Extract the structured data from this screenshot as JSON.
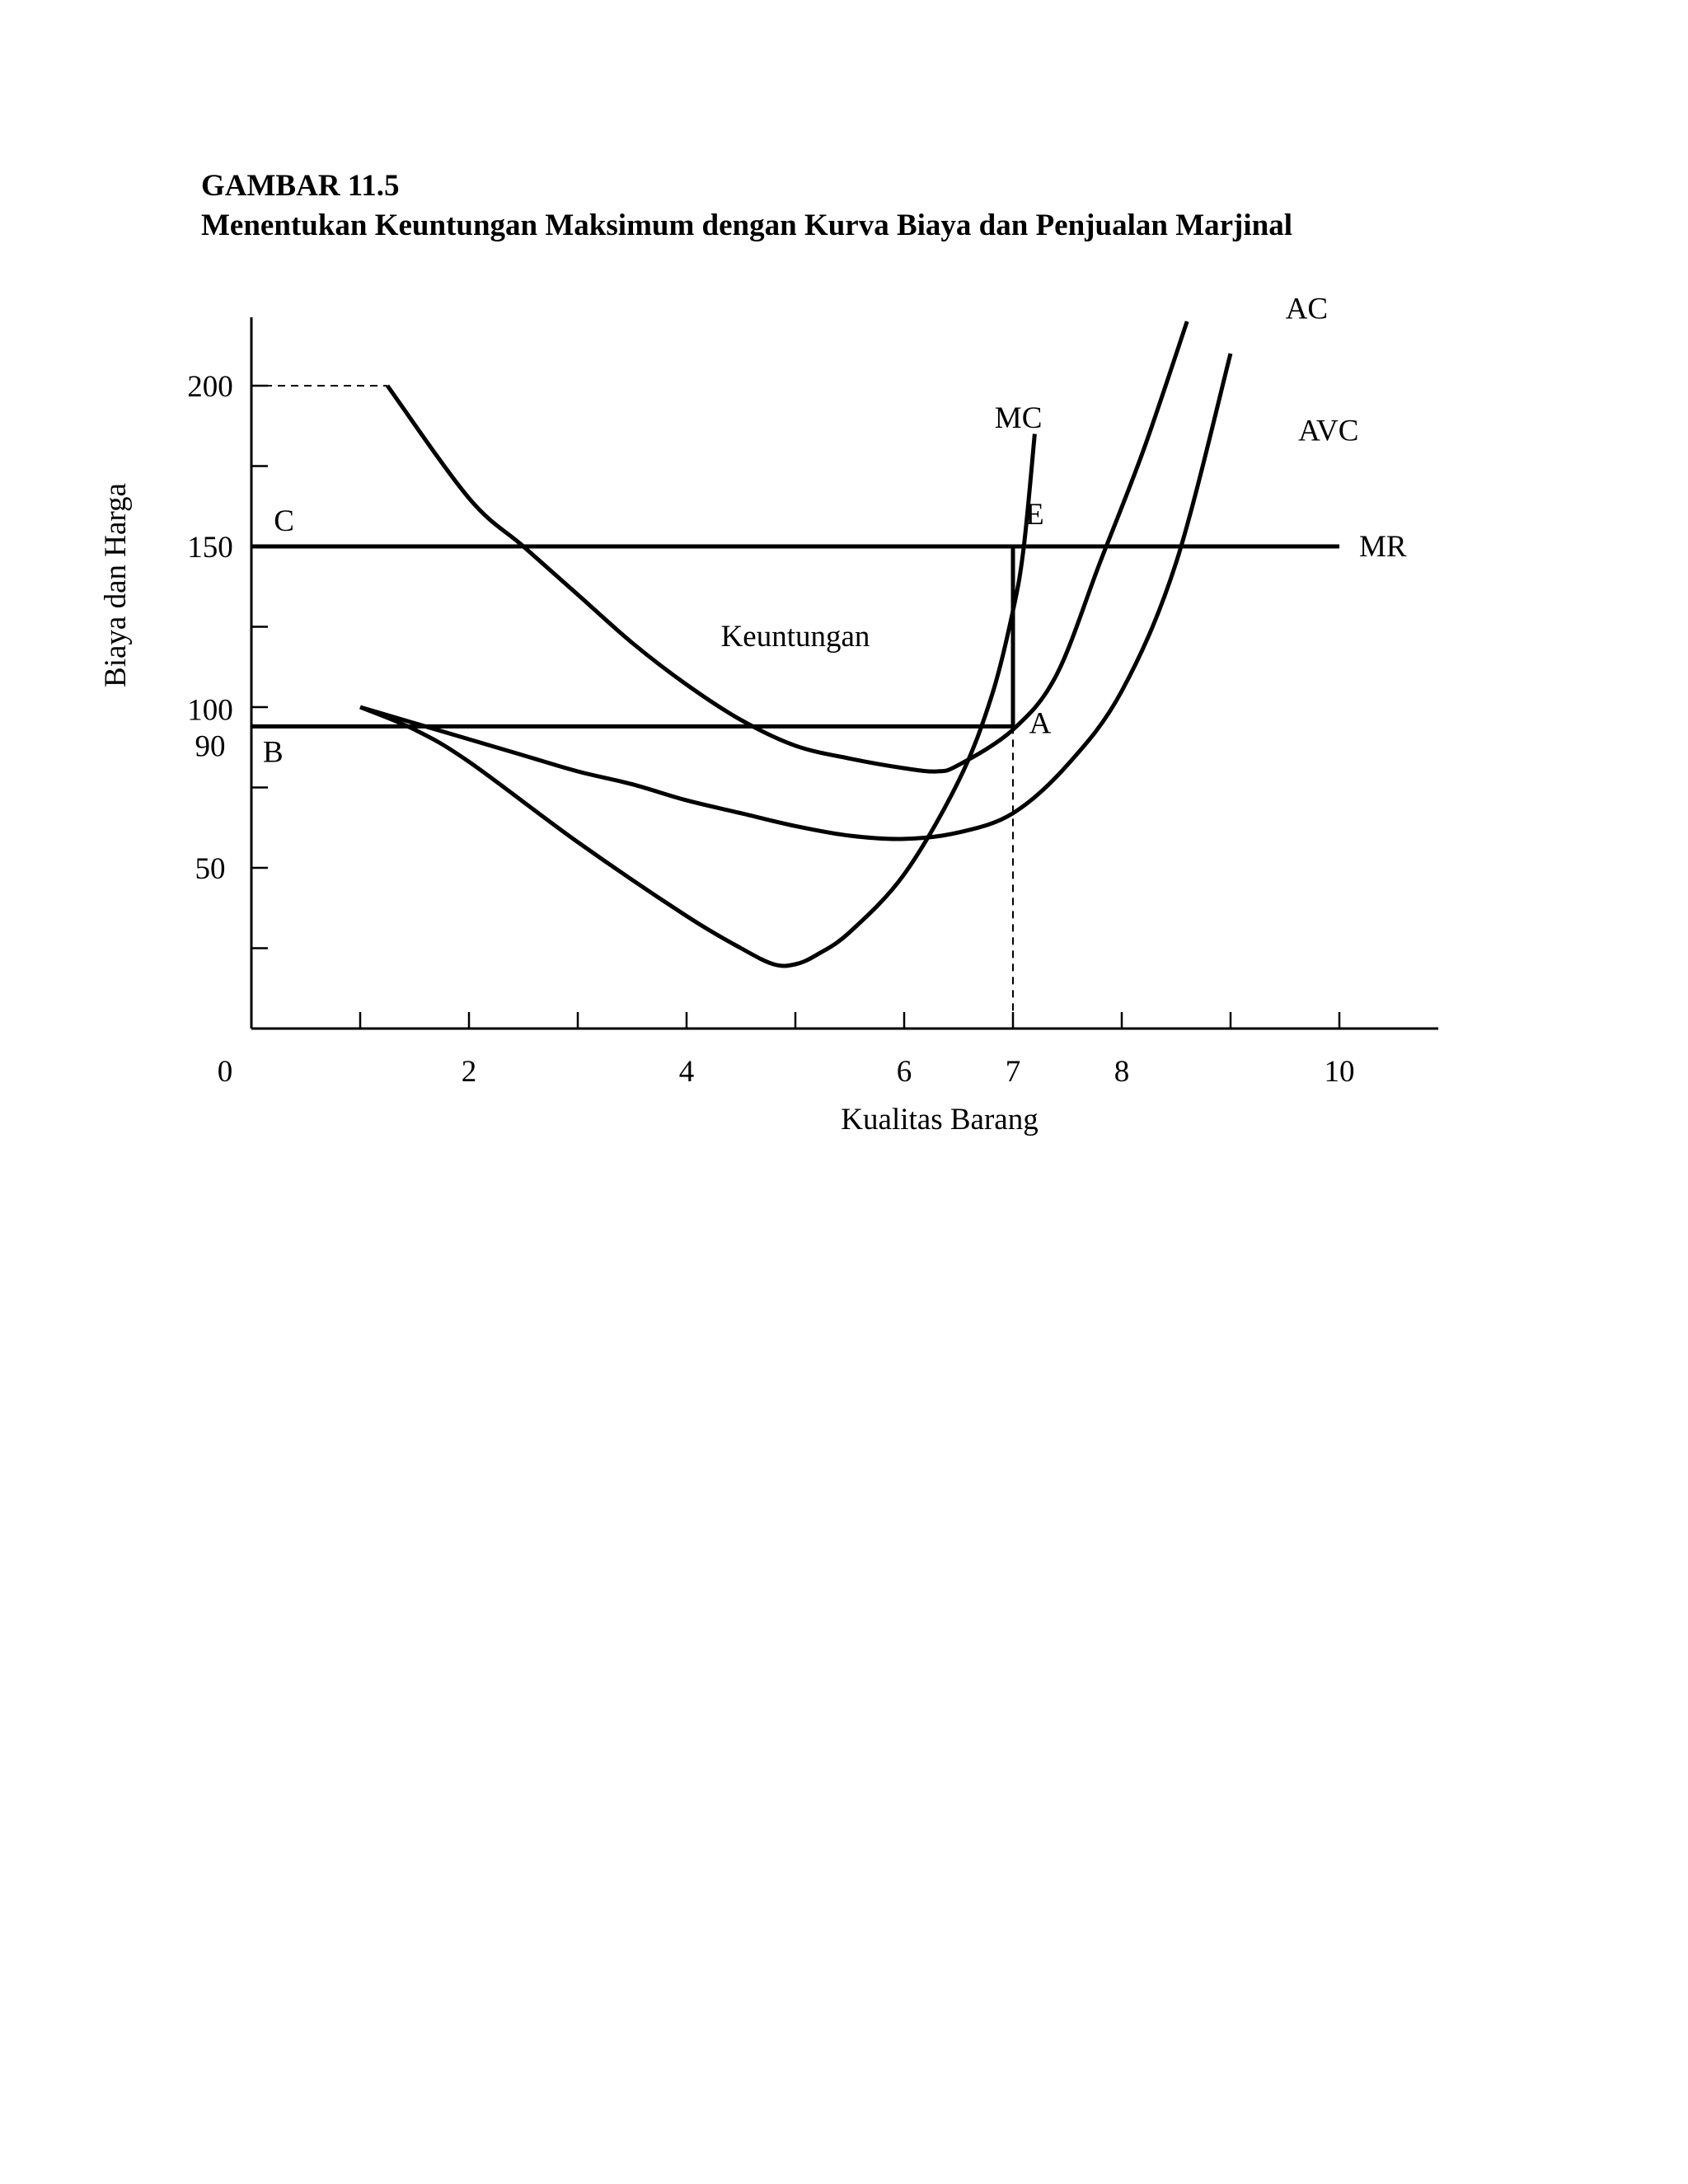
{
  "figure": {
    "title": "GAMBAR 11.5",
    "subtitle": "Menentukan Keuntungan Maksimum dengan Kurva Biaya dan Penjualan Marjinal"
  },
  "chart_data": {
    "type": "line",
    "title": "GAMBAR 11.5",
    "subtitle": "Menentukan Keuntungan Maksimum dengan Kurva Biaya dan Penjualan Marjinal",
    "xlabel": "Kualitas Barang",
    "ylabel": "Biaya dan Harga",
    "xlim": [
      0,
      11
    ],
    "ylim": [
      0,
      220
    ],
    "x_ticks": [
      1,
      2,
      3,
      4,
      5,
      6,
      7,
      8,
      9,
      10
    ],
    "x_tick_labels": [
      {
        "x": 0,
        "label": "0"
      },
      {
        "x": 2,
        "label": "2"
      },
      {
        "x": 4,
        "label": "4"
      },
      {
        "x": 6,
        "label": "6"
      },
      {
        "x": 7,
        "label": "7"
      },
      {
        "x": 8,
        "label": "8"
      },
      {
        "x": 10,
        "label": "10"
      }
    ],
    "y_ticks": [
      25,
      50,
      75,
      100,
      125,
      150,
      175,
      200
    ],
    "y_tick_labels": [
      {
        "y": 50,
        "label": "50"
      },
      {
        "y": 90,
        "label": "90"
      },
      {
        "y": 100,
        "label": "100"
      },
      {
        "y": 150,
        "label": "150"
      },
      {
        "y": 200,
        "label": "200"
      }
    ],
    "grid": false,
    "series": [
      {
        "name": "AC",
        "label_at": [
          9.7,
          224
        ],
        "points": [
          [
            1.25,
            200
          ],
          [
            2.0,
            165
          ],
          [
            2.5,
            150
          ],
          [
            3.0,
            135
          ],
          [
            3.5,
            120
          ],
          [
            4.0,
            107
          ],
          [
            4.5,
            96
          ],
          [
            5.0,
            88
          ],
          [
            5.5,
            84
          ],
          [
            6.0,
            81
          ],
          [
            6.3,
            80
          ],
          [
            6.5,
            82
          ],
          [
            7.0,
            93
          ],
          [
            7.4,
            110
          ],
          [
            7.8,
            145
          ],
          [
            8.2,
            180
          ],
          [
            8.6,
            220
          ]
        ]
      },
      {
        "name": "AVC",
        "label_at": [
          9.9,
          186
        ],
        "points": [
          [
            1.0,
            100
          ],
          [
            1.5,
            95
          ],
          [
            2.0,
            90
          ],
          [
            2.5,
            85
          ],
          [
            3.0,
            80
          ],
          [
            3.5,
            76
          ],
          [
            4.0,
            71
          ],
          [
            4.5,
            67
          ],
          [
            5.0,
            63
          ],
          [
            5.5,
            60
          ],
          [
            6.0,
            59
          ],
          [
            6.5,
            61
          ],
          [
            7.0,
            67
          ],
          [
            7.5,
            82
          ],
          [
            8.0,
            105
          ],
          [
            8.5,
            145
          ],
          [
            9.0,
            210
          ]
        ]
      },
      {
        "name": "MC",
        "label_at": [
          7.05,
          190
        ],
        "points": [
          [
            1.0,
            100
          ],
          [
            1.5,
            93
          ],
          [
            2.0,
            83
          ],
          [
            3.0,
            58
          ],
          [
            4.0,
            35
          ],
          [
            4.5,
            25
          ],
          [
            4.8,
            20
          ],
          [
            5.0,
            20
          ],
          [
            5.2,
            23
          ],
          [
            5.5,
            30
          ],
          [
            6.0,
            48
          ],
          [
            6.5,
            77
          ],
          [
            6.8,
            103
          ],
          [
            7.0,
            130
          ],
          [
            7.1,
            150
          ],
          [
            7.2,
            185
          ]
        ]
      },
      {
        "name": "MR",
        "label_at": [
          10.4,
          150
        ],
        "points": [
          [
            0,
            150
          ],
          [
            10,
            150
          ]
        ]
      }
    ],
    "guides": [
      {
        "kind": "dashed",
        "points": [
          [
            0,
            200
          ],
          [
            1.25,
            200
          ]
        ]
      },
      {
        "kind": "dashed",
        "points": [
          [
            7.0,
            94
          ],
          [
            7.0,
            0
          ]
        ]
      },
      {
        "kind": "solid",
        "points": [
          [
            0,
            94
          ],
          [
            7.0,
            94
          ]
        ]
      },
      {
        "kind": "solid",
        "points": [
          [
            7.0,
            150
          ],
          [
            7.0,
            94
          ]
        ]
      }
    ],
    "annotations": [
      {
        "text": "C",
        "x": 0.3,
        "y": 158
      },
      {
        "text": "B",
        "x": 0.2,
        "y": 86
      },
      {
        "text": "E",
        "x": 7.2,
        "y": 160
      },
      {
        "text": "A",
        "x": 7.25,
        "y": 95
      },
      {
        "text": "Keuntungan",
        "x": 5.0,
        "y": 122
      }
    ]
  }
}
